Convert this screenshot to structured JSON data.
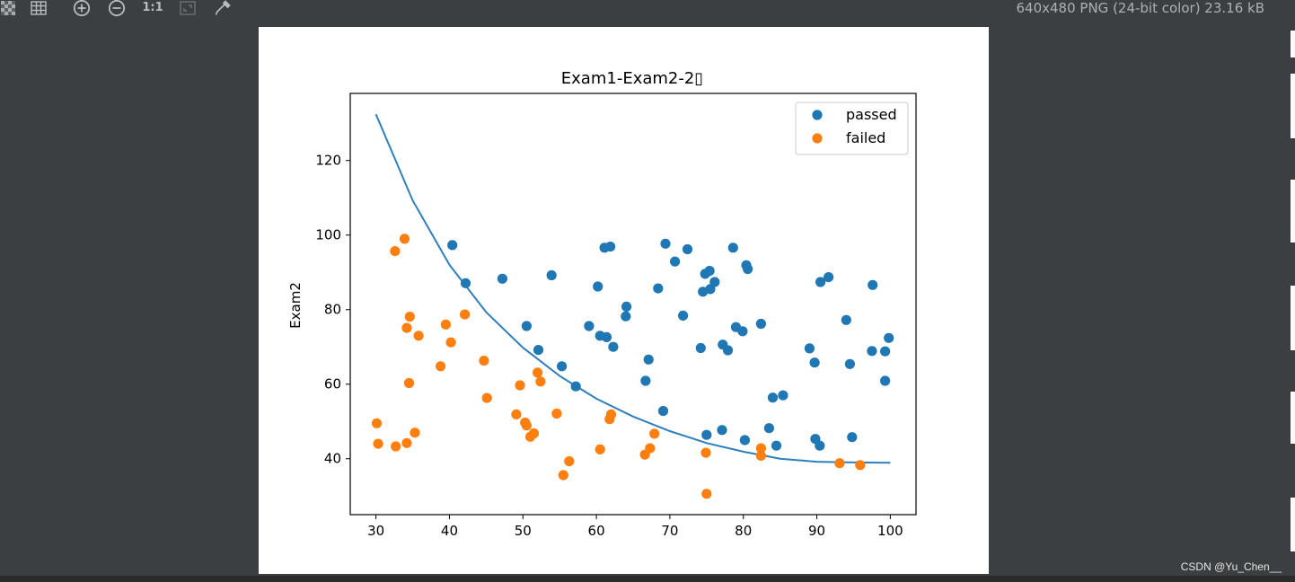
{
  "toolbar": {
    "icons": [
      "checkerboard-icon",
      "grid-icon",
      "zoom-in-icon",
      "zoom-out-icon",
      "actual-size-icon",
      "fit-icon",
      "color-picker-icon"
    ],
    "actual_size_label": "1:1",
    "file_info": "640x480 PNG (24-bit color) 23.16 kB"
  },
  "watermark": "CSDN @Yu_Chen__",
  "colors": {
    "passed": "#1f77b4",
    "failed": "#ff7f0e",
    "curve": "#2f7fbd",
    "background": "#3c3f41"
  },
  "chart_data": {
    "type": "scatter",
    "title": "Exam1-Exam2-2▯",
    "xlabel": "",
    "ylabel": "Exam2",
    "xlim": [
      26.5,
      103.5
    ],
    "ylim": [
      25,
      138
    ],
    "xticks": [
      30,
      40,
      50,
      60,
      70,
      80,
      90,
      100
    ],
    "yticks": [
      40,
      60,
      80,
      100,
      120
    ],
    "grid": false,
    "legend": "top-right",
    "series": [
      {
        "name": "passed",
        "color": "#1f77b4",
        "points": [
          [
            40.4,
            97.3
          ],
          [
            42.2,
            87.1
          ],
          [
            47.2,
            88.3
          ],
          [
            50.5,
            75.6
          ],
          [
            52.1,
            69.2
          ],
          [
            53.9,
            89.2
          ],
          [
            55.3,
            64.8
          ],
          [
            57.2,
            59.4
          ],
          [
            59.0,
            75.6
          ],
          [
            60.2,
            86.2
          ],
          [
            60.5,
            73.0
          ],
          [
            61.1,
            96.6
          ],
          [
            61.4,
            72.6
          ],
          [
            61.9,
            96.9
          ],
          [
            62.3,
            70.0
          ],
          [
            64.0,
            78.2
          ],
          [
            64.1,
            80.8
          ],
          [
            66.7,
            60.9
          ],
          [
            67.1,
            66.6
          ],
          [
            68.4,
            85.7
          ],
          [
            69.1,
            52.8
          ],
          [
            69.4,
            97.7
          ],
          [
            70.7,
            92.9
          ],
          [
            71.8,
            78.4
          ],
          [
            72.4,
            96.2
          ],
          [
            74.2,
            69.7
          ],
          [
            74.5,
            84.8
          ],
          [
            74.8,
            89.6
          ],
          [
            75.0,
            46.4
          ],
          [
            75.4,
            90.4
          ],
          [
            75.5,
            85.5
          ],
          [
            76.1,
            87.4
          ],
          [
            77.1,
            47.7
          ],
          [
            77.2,
            70.6
          ],
          [
            77.9,
            69.1
          ],
          [
            78.6,
            96.6
          ],
          [
            79.0,
            75.3
          ],
          [
            79.9,
            74.2
          ],
          [
            80.2,
            45.0
          ],
          [
            80.4,
            91.9
          ],
          [
            80.6,
            90.9
          ],
          [
            82.4,
            76.2
          ],
          [
            83.5,
            48.2
          ],
          [
            84.0,
            56.4
          ],
          [
            84.5,
            43.5
          ],
          [
            85.4,
            57.0
          ],
          [
            89.0,
            69.6
          ],
          [
            89.7,
            65.8
          ],
          [
            89.8,
            45.3
          ],
          [
            90.4,
            43.5
          ],
          [
            90.5,
            87.4
          ],
          [
            91.6,
            88.7
          ],
          [
            94.0,
            77.2
          ],
          [
            94.5,
            65.4
          ],
          [
            94.8,
            45.8
          ],
          [
            97.5,
            68.9
          ],
          [
            97.6,
            86.6
          ],
          [
            99.3,
            68.8
          ],
          [
            99.3,
            60.9
          ],
          [
            99.8,
            72.4
          ]
        ]
      },
      {
        "name": "failed",
        "color": "#ff7f0e",
        "points": [
          [
            30.1,
            49.5
          ],
          [
            30.3,
            44.0
          ],
          [
            32.6,
            95.7
          ],
          [
            32.7,
            43.3
          ],
          [
            33.9,
            99.0
          ],
          [
            34.2,
            44.2
          ],
          [
            34.2,
            75.1
          ],
          [
            34.5,
            60.3
          ],
          [
            34.6,
            78.1
          ],
          [
            35.3,
            47.0
          ],
          [
            35.8,
            73.0
          ],
          [
            38.8,
            64.8
          ],
          [
            39.5,
            76.0
          ],
          [
            40.2,
            71.2
          ],
          [
            42.1,
            78.7
          ],
          [
            44.7,
            66.3
          ],
          [
            45.1,
            56.3
          ],
          [
            49.1,
            51.9
          ],
          [
            49.6,
            59.7
          ],
          [
            50.3,
            49.7
          ],
          [
            50.5,
            48.9
          ],
          [
            51.0,
            45.9
          ],
          [
            51.5,
            46.8
          ],
          [
            52.0,
            63.1
          ],
          [
            52.4,
            60.7
          ],
          [
            54.6,
            52.1
          ],
          [
            55.5,
            35.6
          ],
          [
            56.3,
            39.3
          ],
          [
            60.5,
            42.5
          ],
          [
            61.8,
            50.6
          ],
          [
            62.0,
            51.9
          ],
          [
            66.6,
            41.1
          ],
          [
            67.3,
            42.8
          ],
          [
            67.9,
            46.7
          ],
          [
            74.9,
            41.6
          ],
          [
            75.0,
            30.6
          ],
          [
            82.4,
            42.8
          ],
          [
            82.4,
            40.8
          ],
          [
            93.1,
            38.8
          ],
          [
            95.9,
            38.3
          ]
        ]
      }
    ],
    "decision_boundary": {
      "x": [
        30,
        35,
        40,
        45,
        50,
        55,
        60,
        65,
        70,
        75,
        80,
        85,
        90,
        95,
        100
      ],
      "y": [
        132.4,
        109.3,
        92.0,
        79.3,
        69.8,
        62.2,
        56.1,
        51.3,
        47.4,
        44.2,
        41.9,
        40.0,
        39.2,
        39.0,
        38.9
      ]
    }
  }
}
